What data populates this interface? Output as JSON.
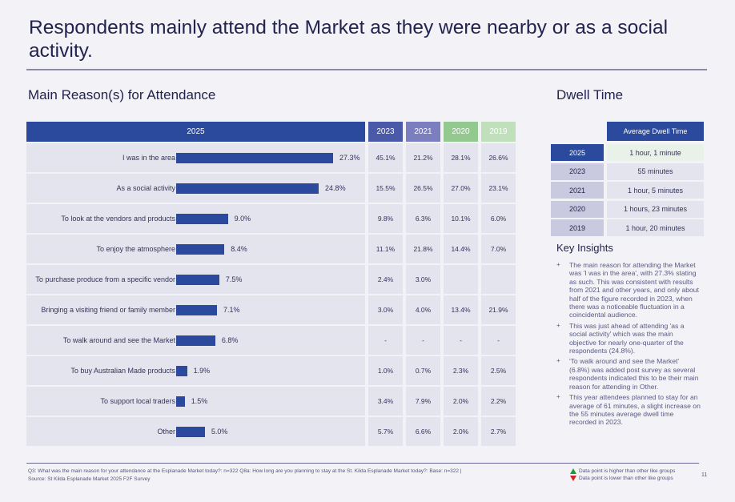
{
  "title": "Respondents mainly attend the Market as they were nearby or as a social activity.",
  "main_heading": "Main Reason(s) for Attendance",
  "dwell_heading": "Dwell Time",
  "colors": {
    "y2025": "#2b4a9d",
    "y2023": "#4a5aa8",
    "y2021": "#7b7fc0",
    "y2020": "#93c98e",
    "y2019": "#bfe0bb"
  },
  "chart_data": {
    "type": "bar",
    "title": "Main Reason(s) for Attendance",
    "orientation": "horizontal",
    "categories": [
      "I was in the area",
      "As a social activity",
      "To look at the vendors and products",
      "To enjoy the atmosphere",
      "To purchase produce from a specific vendor",
      "Bringing a visiting friend or family member",
      "To walk around and see the Market",
      "To buy Australian Made products",
      "To support local traders",
      "Other"
    ],
    "values": [
      27.3,
      24.8,
      9.0,
      8.4,
      7.5,
      7.1,
      6.8,
      1.9,
      1.5,
      5.0
    ],
    "value_labels": [
      "27.3%",
      "24.8%",
      "9.0%",
      "8.4%",
      "7.5%",
      "7.1%",
      "6.8%",
      "1.9%",
      "1.5%",
      "5.0%"
    ],
    "bar_series_name": "2025",
    "xlim": [
      0,
      30
    ],
    "comparison_columns": [
      {
        "name": "2023",
        "values": [
          "45.1%",
          "15.5%",
          "9.8%",
          "11.1%",
          "2.4%",
          "3.0%",
          "-",
          "1.0%",
          "3.4%",
          "5.7%"
        ]
      },
      {
        "name": "2021",
        "values": [
          "21.2%",
          "26.5%",
          "6.3%",
          "21.8%",
          "3.0%",
          "4.0%",
          "-",
          "0.7%",
          "7.9%",
          "6.6%"
        ]
      },
      {
        "name": "2020",
        "values": [
          "28.1%",
          "27.0%",
          "10.1%",
          "14.4%",
          "",
          "13.4%",
          "-",
          "2.3%",
          "2.0%",
          "2.0%"
        ]
      },
      {
        "name": "2019",
        "values": [
          "26.6%",
          "23.1%",
          "6.0%",
          "7.0%",
          "",
          "21.9%",
          "-",
          "2.5%",
          "2.2%",
          "2.7%"
        ]
      }
    ]
  },
  "dwell_table": {
    "header": "Average Dwell Time",
    "rows": [
      {
        "year": "2025",
        "value": "1 hour, 1 minute"
      },
      {
        "year": "2023",
        "value": "55 minutes"
      },
      {
        "year": "2021",
        "value": "1 hour, 5 minutes"
      },
      {
        "year": "2020",
        "value": "1 hours, 23 minutes"
      },
      {
        "year": "2019",
        "value": "1 hour, 20 minutes"
      }
    ]
  },
  "key_insights": {
    "heading": "Key Insights",
    "items": [
      "The main reason for attending the Market was 'I was in the area', with 27.3% stating as such. This was consistent with results from 2021 and other years, and only about half of the figure recorded in 2023, when there was a noticeable fluctuation in a coincidental audience.",
      "This was just ahead of attending 'as a social activity' which was the main objective for nearly one-quarter of the respondents (24.8%).",
      "'To walk around and see the Market' (6.8%) was added post survey as several respondents indicated this to be their main reason for attending in Other.",
      "This year attendees planned to stay for an average of 61 minutes, a slight increase on the 55 minutes average dwell time recorded in 2023."
    ]
  },
  "footer": {
    "line1": "Q3: What was the main reason for your attendance at the Esplanade Market today?: n=322   Q8a: How long are you planning to stay at the St. Kilda Esplanade Market today?: Base: n=322 |",
    "line2": "Source: St Kilda Esplanade Market 2025 F2F Survey",
    "legend_up": "Data point is higher than other like groups",
    "legend_down": "Data point is lower than other like groups",
    "page": "11"
  }
}
